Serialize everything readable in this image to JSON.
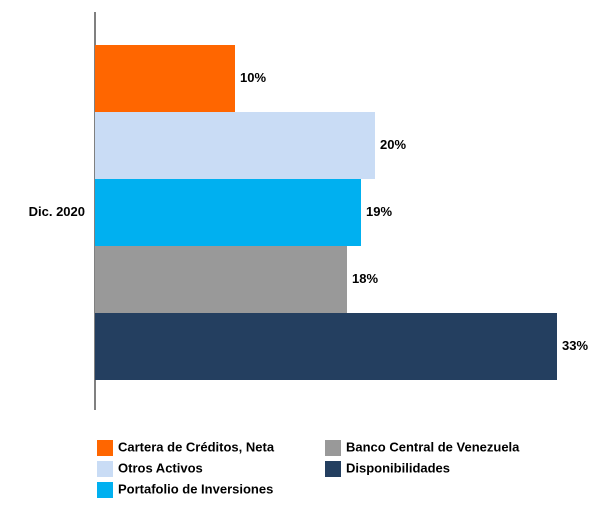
{
  "chart_data": {
    "type": "bar",
    "orientation": "horizontal",
    "categories": [
      "Dic. 2020"
    ],
    "series": [
      {
        "name": "Cartera de Créditos, Neta",
        "color": "#ff6600",
        "values": [
          10
        ],
        "value_labels": [
          "10%"
        ]
      },
      {
        "name": "Otros Activos",
        "color": "#c9dcf5",
        "values": [
          20
        ],
        "value_labels": [
          "20%"
        ]
      },
      {
        "name": "Portafolio de Inversiones",
        "color": "#00b0f0",
        "values": [
          19
        ],
        "value_labels": [
          "19%"
        ]
      },
      {
        "name": "Banco Central de Venezuela",
        "color": "#999999",
        "values": [
          18
        ],
        "value_labels": [
          "18%"
        ]
      },
      {
        "name": "Disponibilidades",
        "color": "#243f60",
        "values": [
          33
        ],
        "value_labels": [
          "33%"
        ]
      }
    ]
  }
}
